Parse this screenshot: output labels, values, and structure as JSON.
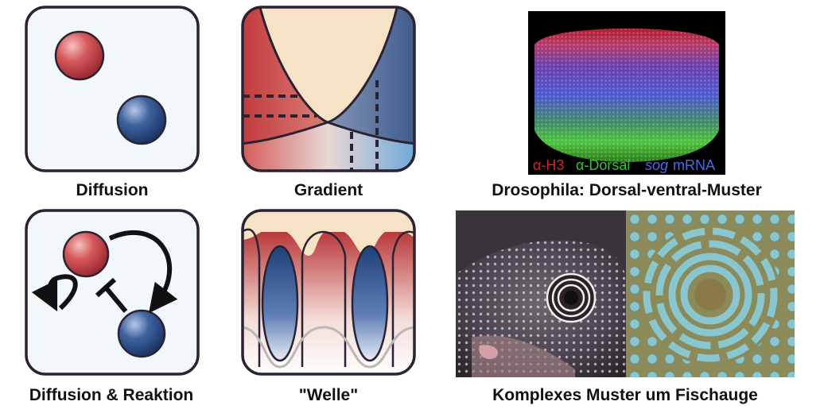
{
  "captions": {
    "diffusion": "Diffusion",
    "gradient": "Gradient",
    "drosophila": "Drosophila: Dorsal-ventral-Muster",
    "reaction": "Diffusion & Reaktion",
    "wave": "\"Welle\"",
    "fish": "Komplexes Muster um Fischauge"
  },
  "embryo_legend": {
    "h3": "α-H3",
    "dorsal": "α-Dorsal",
    "sog": "sog",
    "mrna": "mRNA"
  },
  "colors": {
    "red_sphere": "#c8484c",
    "blue_sphere": "#2e4f86",
    "cream": "#f6e2c4",
    "panel_bg": "#f1f7fa",
    "outline": "#2b2233"
  },
  "icons": {
    "fish_photo": "pufferfish-photo-icon",
    "simulation": "turing-pattern-icon",
    "embryo": "embryo-fluorescence-icon"
  }
}
